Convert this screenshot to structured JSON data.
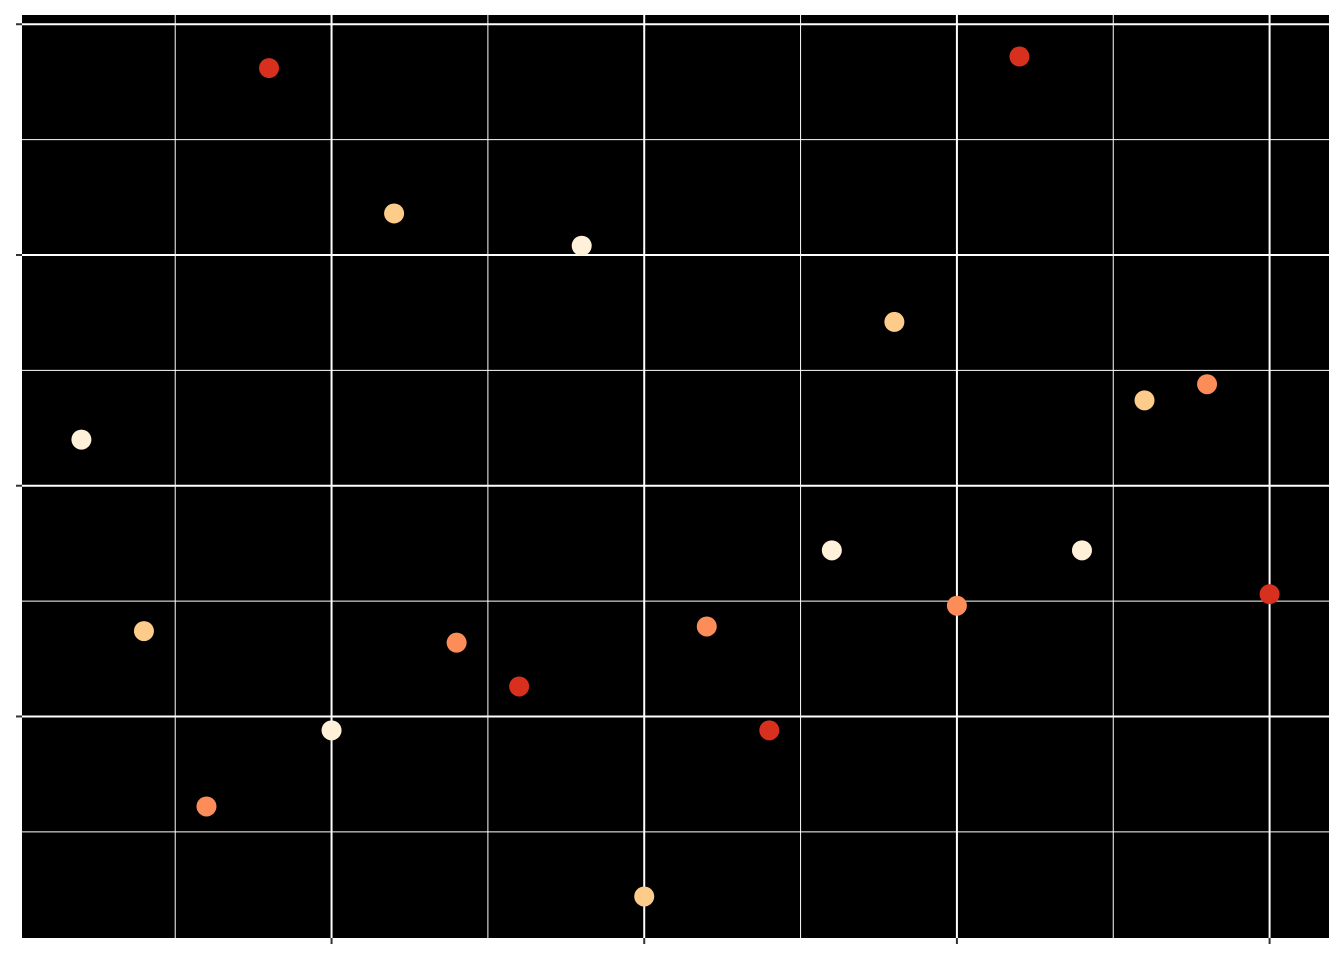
{
  "chart_data": {
    "type": "scatter",
    "x": [
      1,
      2,
      3,
      4,
      5,
      6,
      7,
      8,
      9,
      10,
      11,
      12,
      13,
      14,
      15,
      16,
      17,
      18,
      19,
      20
    ],
    "values": [
      1.2,
      0.37,
      -0.39,
      2.81,
      -0.06,
      2.18,
      0.32,
      0.13,
      2.04,
      -0.78,
      0.39,
      -0.06,
      0.72,
      1.71,
      0.48,
      2.86,
      0.72,
      1.37,
      1.44,
      0.53
    ],
    "colors": [
      "#fef0d9",
      "#fdcc8a",
      "#fc8d59",
      "#d7301f",
      "#fef0d9",
      "#fdcc8a",
      "#fc8d59",
      "#d7301f",
      "#fef0d9",
      "#fdcc8a",
      "#fc8d59",
      "#d7301f",
      "#fef0d9",
      "#fdcc8a",
      "#fc8d59",
      "#d7301f",
      "#fef0d9",
      "#fdcc8a",
      "#fc8d59",
      "#d7301f"
    ],
    "xlim": [
      0.05,
      20.95
    ],
    "ylim": [
      -0.96,
      3.04
    ],
    "xticks": [
      5,
      10,
      15,
      20
    ],
    "yticks": [
      0,
      1,
      2,
      3
    ],
    "xminor": [
      2.5,
      7.5,
      12.5,
      17.5
    ],
    "yminor": [
      -0.5,
      0.5,
      1.5,
      2.5
    ],
    "grid": true,
    "panel_color": "#000000",
    "grid_color": "#ffffff"
  }
}
